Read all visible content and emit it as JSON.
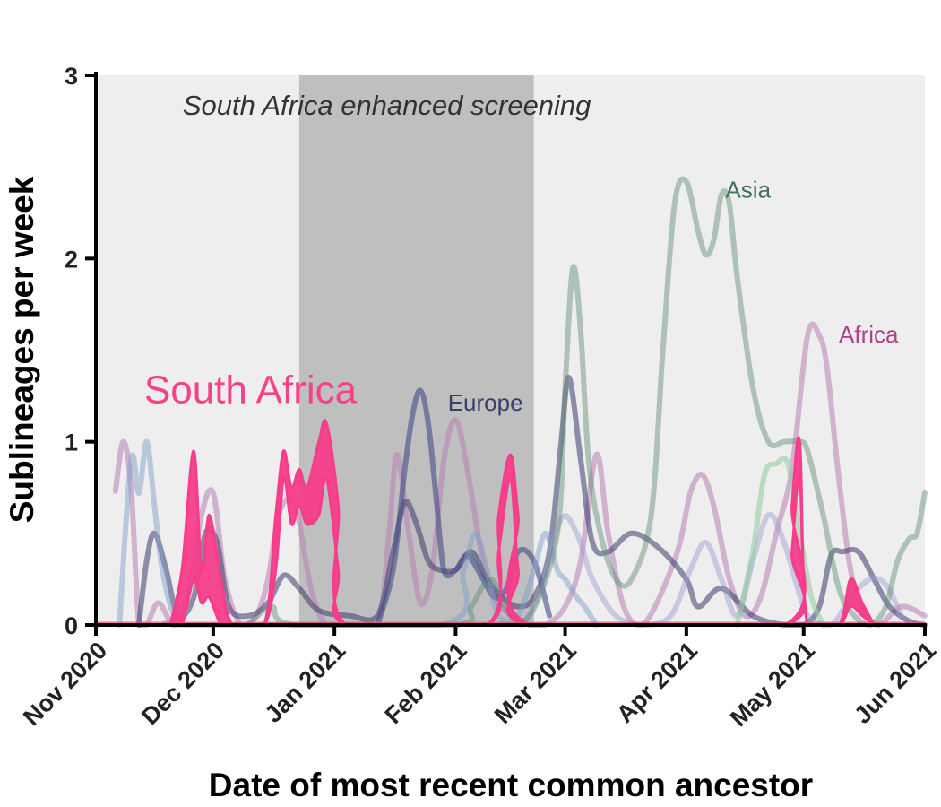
{
  "chart_data": {
    "type": "line",
    "xlabel": "Date of most recent common ancestor",
    "ylabel": "Sublineages per week",
    "x_range": [
      "2020-11-01",
      "2021-06-01"
    ],
    "ylim": [
      0,
      3
    ],
    "x_ticks": [
      "2020-11-01",
      "2020-12-01",
      "2021-01-01",
      "2021-02-01",
      "2021-03-01",
      "2021-04-01",
      "2021-05-01",
      "2021-06-01"
    ],
    "x_tick_labels": [
      "Nov 2020",
      "Dec 2020",
      "Jan 2021",
      "Feb 2021",
      "Mar 2021",
      "Apr 2021",
      "May 2021",
      "Jun 2021"
    ],
    "y_ticks": [
      0,
      1,
      2,
      3
    ],
    "y_tick_labels": [
      "0",
      "1",
      "2",
      "3"
    ],
    "shaded_period": {
      "start": "2020-12-23",
      "end": "2021-02-21",
      "label": "South Africa enhanced screening"
    },
    "annotations": [
      {
        "text": "South Africa",
        "date": "2020-12-12",
        "y": 1.27,
        "color": "#f5428a"
      },
      {
        "text": "Europe",
        "date": "2021-01-30",
        "y": 1.21,
        "color": "#3c3c6e"
      },
      {
        "text": "Asia",
        "date": "2021-04-11",
        "y": 2.37,
        "color": "#3f7058"
      },
      {
        "text": "Africa",
        "date": "2021-05-10",
        "y": 1.58,
        "color": "#b0408a"
      }
    ],
    "series": [
      {
        "color": "#f53d8a",
        "style": "band",
        "opacity": 0.95,
        "x": [
          "2020-11-20",
          "2020-11-23",
          "2020-11-26",
          "2020-11-28",
          "2020-11-30",
          "2020-12-03",
          "2020-12-06",
          "2020-12-14",
          "2020-12-17",
          "2020-12-19",
          "2020-12-21",
          "2020-12-23",
          "2020-12-25",
          "2020-12-28",
          "2020-12-30",
          "2021-01-02",
          "2021-01-04",
          "2021-02-09",
          "2021-02-12",
          "2021-02-15",
          "2021-02-17",
          "2021-02-20",
          "2021-04-26",
          "2021-04-28",
          "2021-04-30",
          "2021-05-02",
          "2021-05-10",
          "2021-05-13",
          "2021-05-16",
          "2021-05-19"
        ],
        "y": [
          0,
          0.3,
          0.95,
          0.3,
          0.6,
          0.25,
          0,
          0,
          0.6,
          0.95,
          0.75,
          0.85,
          0.75,
          1.0,
          1.1,
          0.65,
          0,
          0,
          0.6,
          0.93,
          0.6,
          0,
          0,
          0.65,
          1.0,
          0,
          0,
          0.25,
          0.12,
          0
        ],
        "y_low": [
          0,
          0,
          0.25,
          0.12,
          0.15,
          0,
          0,
          0,
          0.3,
          0.8,
          0.55,
          0.65,
          0.55,
          0.6,
          0.8,
          0.3,
          0,
          0,
          0.4,
          0.8,
          0.3,
          0,
          0,
          0.4,
          0.8,
          0,
          0,
          0.1,
          0.05,
          0
        ]
      },
      {
        "color": "#ba82b4",
        "opacity": 0.55,
        "x": [
          "2020-11-06",
          "2020-11-08",
          "2020-11-10",
          "2020-11-12",
          "2020-11-14",
          "2020-11-17",
          "2020-11-21",
          "2020-11-25",
          "2020-11-28",
          "2020-12-01",
          "2020-12-04",
          "2020-12-08",
          "2020-12-12",
          "2020-12-15",
          "2020-12-18",
          "2020-12-22",
          "2020-12-26",
          "2020-12-30",
          "2021-01-05",
          "2021-01-12",
          "2021-01-15",
          "2021-01-17",
          "2021-01-20",
          "2021-01-23",
          "2021-01-26",
          "2021-01-29",
          "2021-02-01",
          "2021-02-04",
          "2021-02-08",
          "2021-02-12",
          "2021-02-16",
          "2021-02-20",
          "2021-02-24",
          "2021-03-01",
          "2021-03-05",
          "2021-03-09",
          "2021-03-12",
          "2021-03-16",
          "2021-03-20",
          "2021-03-24",
          "2021-03-30",
          "2021-04-02",
          "2021-04-05",
          "2021-04-08",
          "2021-04-12",
          "2021-04-16",
          "2021-04-20",
          "2021-04-24",
          "2021-04-28",
          "2021-05-02",
          "2021-05-05",
          "2021-05-07",
          "2021-05-10",
          "2021-05-13",
          "2021-05-16",
          "2021-05-20",
          "2021-05-26",
          "2021-06-01"
        ],
        "y": [
          0.73,
          1.0,
          0.75,
          0,
          0,
          0.12,
          0,
          0.2,
          0.6,
          0.72,
          0.25,
          0,
          0.05,
          0.25,
          0.62,
          0.65,
          0.2,
          0,
          0,
          0,
          0.5,
          0.93,
          0.5,
          0.12,
          0.3,
          0.9,
          1.12,
          0.85,
          0.35,
          0.12,
          0.05,
          0,
          0,
          0.1,
          0.35,
          0.93,
          0.5,
          0.1,
          0,
          0.1,
          0.42,
          0.72,
          0.82,
          0.65,
          0.25,
          0.05,
          0.15,
          0.5,
          0.85,
          1.58,
          1.58,
          1.4,
          0.8,
          0.3,
          0.1,
          0,
          0.1,
          0.05
        ]
      },
      {
        "color": "#3c3c6e",
        "opacity": 0.55,
        "x": [
          "2020-11-12",
          "2020-11-14",
          "2020-11-16",
          "2020-11-19",
          "2020-11-22",
          "2020-11-26",
          "2020-11-29",
          "2020-12-02",
          "2020-12-05",
          "2020-12-10",
          "2020-12-15",
          "2020-12-19",
          "2020-12-23",
          "2020-12-28",
          "2021-01-05",
          "2021-01-12",
          "2021-01-16",
          "2021-01-19",
          "2021-01-22",
          "2021-01-25",
          "2021-01-28",
          "2021-02-01",
          "2021-02-05",
          "2021-02-09",
          "2021-02-13",
          "2021-02-17",
          "2021-02-21",
          "2021-02-25",
          "2021-02-28",
          "2021-03-02",
          "2021-03-05",
          "2021-03-08",
          "2021-03-12",
          "2021-03-18",
          "2021-03-25",
          "2021-04-01",
          "2021-04-04",
          "2021-04-10",
          "2021-04-18",
          "2021-04-26",
          "2021-05-01",
          "2021-05-05",
          "2021-05-08",
          "2021-05-11",
          "2021-05-15",
          "2021-05-19",
          "2021-05-23",
          "2021-05-28",
          "2021-06-01"
        ],
        "y": [
          0,
          0.35,
          0.5,
          0.3,
          0.05,
          0.15,
          0.5,
          0.45,
          0.1,
          0.05,
          0.12,
          0.27,
          0.2,
          0.08,
          0.05,
          0.05,
          0.4,
          0.67,
          0.55,
          0.35,
          0.3,
          0.3,
          0.4,
          0.25,
          0.15,
          0.1,
          0.15,
          0.4,
          1.0,
          1.35,
          0.9,
          0.45,
          0.4,
          0.5,
          0.42,
          0.25,
          0.1,
          0.2,
          0.05,
          0.0,
          0,
          0.1,
          0.38,
          0.4,
          0.4,
          0.25,
          0.1,
          0.02,
          0
        ]
      },
      {
        "color": "#474d8a",
        "opacity": 0.6,
        "x": [
          "2021-01-12",
          "2021-01-16",
          "2021-01-19",
          "2021-01-21",
          "2021-01-23",
          "2021-01-25",
          "2021-01-27",
          "2021-01-29",
          "2021-02-01",
          "2021-02-04",
          "2021-02-08",
          "2021-02-11",
          "2021-02-14",
          "2021-02-17",
          "2021-02-21",
          "2021-02-25"
        ],
        "y": [
          0,
          0.3,
          0.85,
          1.15,
          1.28,
          1.1,
          0.7,
          0.3,
          0.3,
          0.38,
          0.25,
          0.15,
          0.2,
          0.4,
          0.35,
          0.05
        ]
      },
      {
        "color": "#82a0c8",
        "opacity": 0.5,
        "x": [
          "2020-11-07",
          "2020-11-10",
          "2020-11-12",
          "2020-11-14",
          "2020-11-16",
          "2020-11-18",
          "2020-11-21",
          "2020-11-24",
          "2021-01-28",
          "2021-02-03",
          "2021-02-06",
          "2021-02-09",
          "2021-02-12",
          "2021-02-17",
          "2021-02-21",
          "2021-02-24",
          "2021-02-27",
          "2021-03-01",
          "2021-03-04",
          "2021-03-06",
          "2021-03-09"
        ],
        "y": [
          0,
          0.9,
          0.72,
          1.0,
          0.65,
          0.3,
          0.05,
          0,
          0,
          0.3,
          0.5,
          0.3,
          0.05,
          0.05,
          0.3,
          0.5,
          0.3,
          0.25,
          0.15,
          0.1,
          0
        ]
      },
      {
        "color": "#9a9ad0",
        "opacity": 0.45,
        "x": [
          "2021-02-18",
          "2021-02-23",
          "2021-02-28",
          "2021-03-04",
          "2021-03-08",
          "2021-03-14",
          "2021-03-21",
          "2021-03-28",
          "2021-04-02",
          "2021-04-06",
          "2021-04-10",
          "2021-04-14",
          "2021-04-18",
          "2021-04-22",
          "2021-04-26",
          "2021-05-02",
          "2021-05-08",
          "2021-05-13",
          "2021-05-18",
          "2021-05-22",
          "2021-05-26"
        ],
        "y": [
          0,
          0.2,
          0.58,
          0.5,
          0.25,
          0.05,
          0,
          0.05,
          0.3,
          0.45,
          0.25,
          0.05,
          0.35,
          0.6,
          0.45,
          0.05,
          0,
          0.15,
          0.25,
          0.22,
          0.05
        ]
      },
      {
        "color": "#5e8a72",
        "opacity": 0.45,
        "x": [
          "2020-12-10",
          "2020-12-16",
          "2020-12-22",
          "2021-02-01",
          "2021-02-05",
          "2021-02-10",
          "2021-02-15",
          "2021-02-20",
          "2021-02-27",
          "2021-03-01",
          "2021-03-03",
          "2021-03-05",
          "2021-03-07",
          "2021-03-10",
          "2021-03-14",
          "2021-03-18",
          "2021-03-23",
          "2021-03-26",
          "2021-03-29",
          "2021-04-01",
          "2021-04-04",
          "2021-04-06",
          "2021-04-08",
          "2021-04-10",
          "2021-04-12",
          "2021-04-14",
          "2021-04-18",
          "2021-04-22",
          "2021-04-26",
          "2021-04-30",
          "2021-05-02",
          "2021-05-06",
          "2021-05-10",
          "2021-05-14",
          "2021-05-18",
          "2021-05-22",
          "2021-05-25",
          "2021-05-28",
          "2021-05-30",
          "2021-06-01"
        ],
        "y": [
          0,
          0.1,
          0,
          0,
          0.1,
          0.25,
          0.05,
          0.05,
          0.5,
          1.3,
          1.95,
          1.6,
          0.9,
          0.5,
          0.25,
          0.25,
          0.6,
          1.5,
          2.3,
          2.42,
          2.15,
          2.02,
          2.1,
          2.35,
          2.3,
          1.9,
          1.3,
          1.0,
          1.0,
          1.0,
          0.95,
          0.6,
          0.2,
          0.05,
          0,
          0.1,
          0.35,
          0.47,
          0.5,
          0.72
        ]
      },
      {
        "color": "#8fcc9c",
        "opacity": 0.55,
        "x": [
          "2021-04-14",
          "2021-04-18",
          "2021-04-21",
          "2021-04-24",
          "2021-04-27",
          "2021-04-30",
          "2021-05-03",
          "2021-05-06"
        ],
        "y": [
          0,
          0.4,
          0.82,
          0.88,
          0.88,
          0.5,
          0.15,
          0
        ]
      }
    ]
  }
}
